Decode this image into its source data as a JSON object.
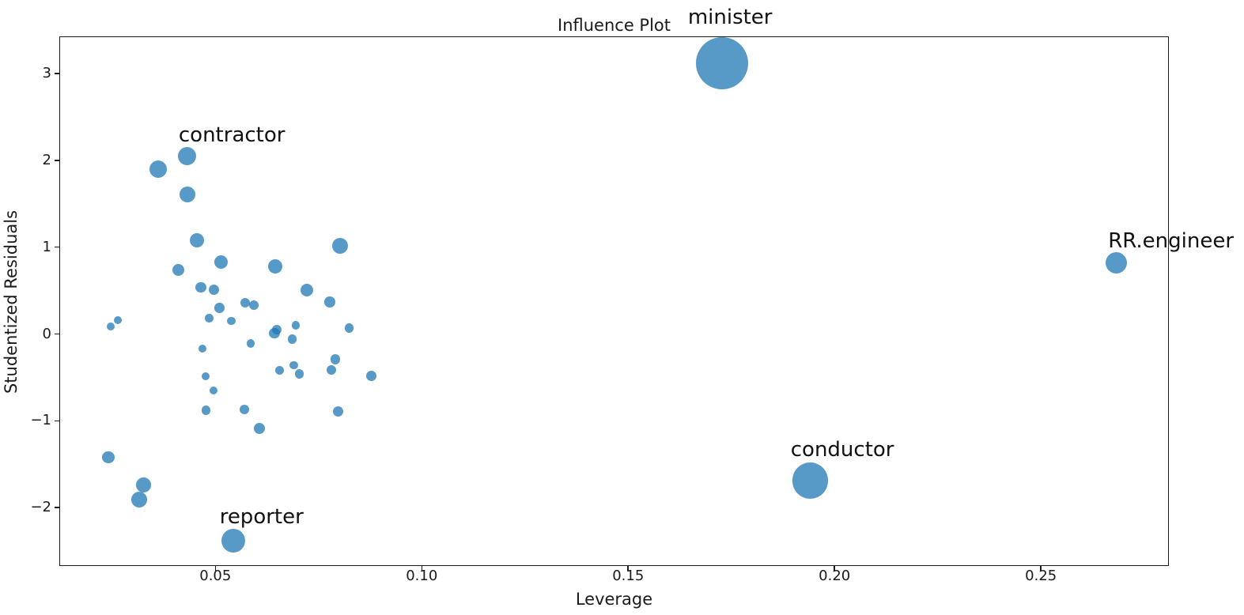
{
  "chart_data": {
    "type": "scatter",
    "title": "Influence Plot",
    "xlabel": "Leverage",
    "ylabel": "Studentized Residuals",
    "xlim": [
      0.0122,
      0.281
    ],
    "ylim": [
      -2.673,
      3.429
    ],
    "x_ticks": [
      0.05,
      0.1,
      0.15,
      0.2,
      0.25
    ],
    "x_tick_labels": [
      "0.05",
      "0.10",
      "0.15",
      "0.20",
      "0.25"
    ],
    "y_ticks": [
      3,
      2,
      1,
      0,
      -1,
      -2
    ],
    "y_tick_labels": [
      "3",
      "2",
      "1",
      "0",
      "−1",
      "−2"
    ],
    "grid": false,
    "legend": null,
    "marker_color": "#1f77b4",
    "marker_alpha": 0.75,
    "points": [
      {
        "x": 0.1727,
        "y": 3.12,
        "r": 33,
        "label": "minister"
      },
      {
        "x": 0.0432,
        "y": 2.05,
        "r": 11.5,
        "label": "contractor"
      },
      {
        "x": 0.0362,
        "y": 1.9,
        "r": 11,
        "label": null
      },
      {
        "x": 0.0432,
        "y": 1.61,
        "r": 10,
        "label": null
      },
      {
        "x": 0.0455,
        "y": 1.08,
        "r": 9,
        "label": null
      },
      {
        "x": 0.0411,
        "y": 0.74,
        "r": 7.5,
        "label": null
      },
      {
        "x": 0.0513,
        "y": 0.83,
        "r": 8.5,
        "label": null
      },
      {
        "x": 0.0802,
        "y": 1.02,
        "r": 10,
        "label": null
      },
      {
        "x": 0.0465,
        "y": 0.54,
        "r": 6.7,
        "label": null
      },
      {
        "x": 0.0497,
        "y": 0.51,
        "r": 6.7,
        "label": null
      },
      {
        "x": 0.0645,
        "y": 0.78,
        "r": 9,
        "label": null
      },
      {
        "x": 0.051,
        "y": 0.3,
        "r": 6.3,
        "label": null
      },
      {
        "x": 0.0572,
        "y": 0.36,
        "r": 6,
        "label": null
      },
      {
        "x": 0.0593,
        "y": 0.33,
        "r": 6,
        "label": null
      },
      {
        "x": 0.0722,
        "y": 0.51,
        "r": 8,
        "label": null
      },
      {
        "x": 0.0777,
        "y": 0.37,
        "r": 6.7,
        "label": null
      },
      {
        "x": 0.0485,
        "y": 0.18,
        "r": 5.3,
        "label": null
      },
      {
        "x": 0.0539,
        "y": 0.15,
        "r": 5.3,
        "label": null
      },
      {
        "x": 0.0247,
        "y": 0.09,
        "r": 5,
        "label": null
      },
      {
        "x": 0.0263,
        "y": 0.16,
        "r": 5,
        "label": null
      },
      {
        "x": 0.0643,
        "y": 0.01,
        "r": 6.8,
        "label": null
      },
      {
        "x": 0.0648,
        "y": 0.05,
        "r": 6,
        "label": null
      },
      {
        "x": 0.0695,
        "y": 0.1,
        "r": 5.3,
        "label": null
      },
      {
        "x": 0.0686,
        "y": -0.06,
        "r": 5.7,
        "label": null
      },
      {
        "x": 0.0824,
        "y": 0.07,
        "r": 5.7,
        "label": null
      },
      {
        "x": 0.0791,
        "y": -0.29,
        "r": 6.3,
        "label": null
      },
      {
        "x": 0.0781,
        "y": -0.41,
        "r": 6,
        "label": null
      },
      {
        "x": 0.0656,
        "y": -0.42,
        "r": 5.7,
        "label": null
      },
      {
        "x": 0.069,
        "y": -0.36,
        "r": 5.3,
        "label": null
      },
      {
        "x": 0.0704,
        "y": -0.46,
        "r": 5.7,
        "label": null
      },
      {
        "x": 0.0878,
        "y": -0.48,
        "r": 6.7,
        "label": null
      },
      {
        "x": 0.0468,
        "y": -0.17,
        "r": 5,
        "label": null
      },
      {
        "x": 0.0586,
        "y": -0.11,
        "r": 5.3,
        "label": null
      },
      {
        "x": 0.0476,
        "y": -0.49,
        "r": 5,
        "label": null
      },
      {
        "x": 0.0496,
        "y": -0.65,
        "r": 5,
        "label": null
      },
      {
        "x": 0.0477,
        "y": -0.88,
        "r": 5.7,
        "label": null
      },
      {
        "x": 0.057,
        "y": -0.87,
        "r": 6.3,
        "label": null
      },
      {
        "x": 0.0797,
        "y": -0.89,
        "r": 6.7,
        "label": null
      },
      {
        "x": 0.0606,
        "y": -1.09,
        "r": 7,
        "label": null
      },
      {
        "x": 0.0241,
        "y": -1.42,
        "r": 7.7,
        "label": null
      },
      {
        "x": 0.0326,
        "y": -1.74,
        "r": 9.3,
        "label": null
      },
      {
        "x": 0.0316,
        "y": -1.91,
        "r": 10,
        "label": null
      },
      {
        "x": 0.0543,
        "y": -2.38,
        "r": 15,
        "label": "reporter"
      },
      {
        "x": 0.1941,
        "y": -1.69,
        "r": 22.7,
        "label": "conductor"
      },
      {
        "x": 0.2683,
        "y": 0.82,
        "r": 13.5,
        "label": "RR.engineer"
      }
    ],
    "annotations": [
      {
        "text": "minister",
        "x": 0.1747,
        "y": 3.65
      },
      {
        "text": "contractor",
        "x": 0.054,
        "y": 2.29
      },
      {
        "text": "reporter",
        "x": 0.0612,
        "y": -2.11
      },
      {
        "text": "conductor",
        "x": 0.2019,
        "y": -1.33
      },
      {
        "text": "RR.engineer",
        "x": 0.2815,
        "y": 1.07
      }
    ]
  }
}
